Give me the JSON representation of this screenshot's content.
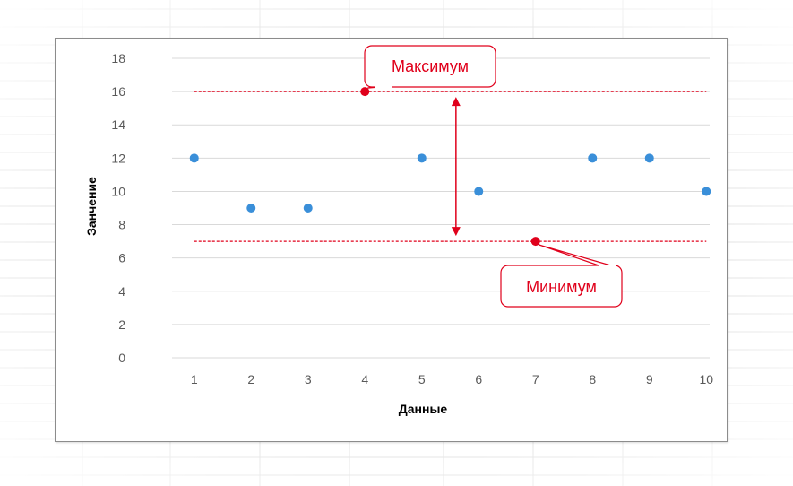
{
  "chart_data": {
    "type": "scatter",
    "xlabel": "Данные",
    "ylabel": "Занчение",
    "xlim": [
      0.5,
      10.5
    ],
    "ylim": [
      0,
      18
    ],
    "x_ticks": [
      "1",
      "2",
      "3",
      "4",
      "5",
      "6",
      "7",
      "8",
      "9",
      "10"
    ],
    "y_ticks": [
      "0",
      "2",
      "4",
      "6",
      "8",
      "10",
      "12",
      "14",
      "16",
      "18"
    ],
    "grid": true,
    "points": [
      {
        "x": 1,
        "y": 12
      },
      {
        "x": 2,
        "y": 9
      },
      {
        "x": 3,
        "y": 9
      },
      {
        "x": 4,
        "y": 16,
        "highlight": "max"
      },
      {
        "x": 5,
        "y": 12
      },
      {
        "x": 6,
        "y": 10
      },
      {
        "x": 7,
        "y": 7,
        "highlight": "min"
      },
      {
        "x": 8,
        "y": 12
      },
      {
        "x": 9,
        "y": 12
      },
      {
        "x": 10,
        "y": 10
      }
    ],
    "reference_lines": [
      {
        "y": 16,
        "style": "dashed"
      },
      {
        "y": 7,
        "style": "dashed"
      }
    ],
    "range_arrow": {
      "x": 5.6,
      "from": 7,
      "to": 16
    },
    "annotations": {
      "max_label": "Максимум",
      "min_label": "Минимум"
    },
    "colors": {
      "point": "#3a8fd9",
      "highlight": "#e0001b",
      "grid": "#d9d9d9",
      "tick_text": "#595959"
    }
  }
}
